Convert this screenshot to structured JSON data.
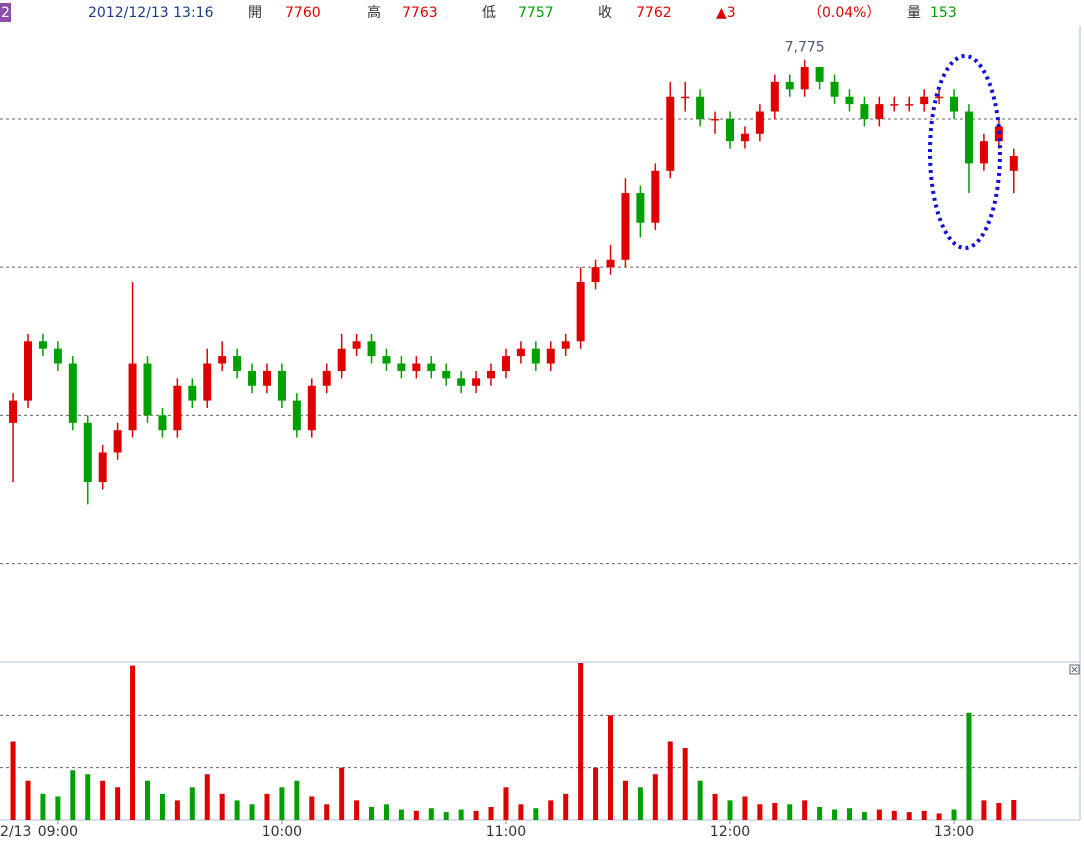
{
  "header": {
    "tag": "2",
    "datetime": "2012/12/13 13:16",
    "open_label": "開",
    "high_label": "高",
    "low_label": "低",
    "close_label": "收",
    "change": "▲3",
    "change_pct": "（0.04%）",
    "volume_label": "量"
  },
  "chart_data": {
    "type": "candlestick",
    "date_label": "2/13",
    "x": [
      528,
      532,
      536,
      540,
      544,
      548,
      552,
      556,
      560,
      564,
      568,
      572,
      576,
      580,
      584,
      588,
      592,
      596,
      600,
      604,
      608,
      612,
      616,
      620,
      624,
      628,
      632,
      636,
      640,
      644,
      648,
      652,
      656,
      660,
      664,
      668,
      672,
      676,
      680,
      684,
      688,
      692,
      696,
      700,
      704,
      708,
      712,
      716,
      720,
      724,
      728,
      732,
      736,
      740,
      744,
      748,
      752,
      756,
      760,
      764,
      768,
      772,
      776,
      780,
      784,
      788,
      792,
      796
    ],
    "open": [
      7726,
      7729,
      7737,
      7736,
      7734,
      7726,
      7718,
      7722,
      7725,
      7734,
      7727,
      7725,
      7731,
      7729,
      7734,
      7735,
      7733,
      7731,
      7733,
      7729,
      7725,
      7731,
      7733,
      7736,
      7737,
      7735,
      7734,
      7733,
      7734,
      7733,
      7732,
      7731,
      7732,
      7733,
      7735,
      7736,
      7734,
      7736,
      7737,
      7745,
      7747,
      7748,
      7757,
      7753,
      7760,
      7770,
      7770,
      7767,
      7767,
      7764,
      7765,
      7768,
      7772,
      7771,
      7774,
      7772,
      7770,
      7769,
      7767,
      7769,
      7769,
      7769,
      7770,
      7770,
      7768,
      7761,
      7764,
      7760
    ],
    "high": [
      7730,
      7738,
      7738,
      7737,
      7735,
      7727,
      7723,
      7726,
      7745,
      7735,
      7728,
      7732,
      7732,
      7736,
      7737,
      7736,
      7734,
      7734,
      7734,
      7730,
      7732,
      7734,
      7738,
      7738,
      7738,
      7736,
      7735,
      7735,
      7735,
      7734,
      7733,
      7733,
      7734,
      7736,
      7737,
      7737,
      7737,
      7738,
      7747,
      7748,
      7750,
      7759,
      7758,
      7761,
      7772,
      7772,
      7771,
      7768,
      7768,
      7766,
      7769,
      7773,
      7773,
      7775,
      7774,
      7773,
      7771,
      7770,
      7770,
      7770,
      7770,
      7771,
      7771,
      7771,
      7769,
      7765,
      7767,
      7763
    ],
    "low": [
      7718,
      7728,
      7735,
      7733,
      7725,
      7715,
      7717,
      7721,
      7724,
      7726,
      7724,
      7724,
      7728,
      7728,
      7733,
      7732,
      7730,
      7730,
      7728,
      7724,
      7724,
      7730,
      7732,
      7735,
      7734,
      7733,
      7732,
      7732,
      7732,
      7731,
      7730,
      7730,
      7731,
      7732,
      7734,
      7733,
      7733,
      7735,
      7736,
      7744,
      7746,
      7747,
      7751,
      7752,
      7759,
      7768,
      7766,
      7765,
      7763,
      7763,
      7764,
      7767,
      7770,
      7770,
      7771,
      7769,
      7768,
      7766,
      7766,
      7768,
      7768,
      7768,
      7769,
      7767,
      7757,
      7760,
      7763,
      7757
    ],
    "close": [
      7729,
      7737,
      7736,
      7734,
      7726,
      7718,
      7722,
      7725,
      7734,
      7727,
      7725,
      7731,
      7729,
      7734,
      7735,
      7733,
      7731,
      7733,
      7729,
      7725,
      7731,
      7733,
      7736,
      7737,
      7735,
      7734,
      7733,
      7734,
      7733,
      7732,
      7731,
      7732,
      7733,
      7735,
      7736,
      7734,
      7736,
      7737,
      7745,
      7747,
      7748,
      7757,
      7753,
      7760,
      7770,
      7770,
      7767,
      7767,
      7764,
      7765,
      7768,
      7772,
      7771,
      7774,
      7772,
      7770,
      7769,
      7767,
      7769,
      7769,
      7769,
      7770,
      7770,
      7768,
      7761,
      7764,
      7766,
      7762
    ],
    "volume": [
      600,
      300,
      200,
      180,
      380,
      350,
      300,
      250,
      1180,
      300,
      200,
      150,
      250,
      350,
      200,
      150,
      120,
      200,
      250,
      300,
      180,
      120,
      400,
      150,
      100,
      120,
      80,
      70,
      90,
      60,
      80,
      70,
      100,
      250,
      120,
      90,
      150,
      200,
      1200,
      400,
      800,
      300,
      250,
      350,
      600,
      550,
      300,
      200,
      150,
      180,
      120,
      130,
      120,
      150,
      100,
      80,
      90,
      60,
      80,
      70,
      60,
      70,
      50,
      80,
      820,
      150,
      130,
      153
    ],
    "up_color": "#e00000",
    "down_color": "#00a000",
    "xlim": [
      524.5,
      813.2
    ],
    "xticks": [
      {
        "value": 540,
        "label": "09:00"
      },
      {
        "value": 600,
        "label": "10:00"
      },
      {
        "value": 660,
        "label": "11:00"
      },
      {
        "value": 720,
        "label": "12:00"
      },
      {
        "value": 780,
        "label": "13:00"
      }
    ],
    "ylim": [
      7694,
      7779
    ],
    "y_grid": [
      7707,
      7727,
      7747,
      7767
    ],
    "volume_ylim": [
      0,
      1200
    ],
    "volume_grid": [
      400,
      800
    ],
    "annotation": {
      "value": 7775,
      "label": "7,775"
    }
  }
}
